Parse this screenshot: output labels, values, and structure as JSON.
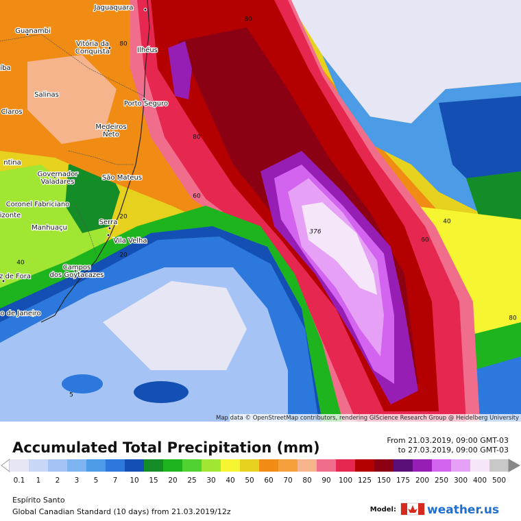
{
  "map": {
    "places": [
      {
        "lines": [
          "Jaguaquara"
        ]
      },
      {
        "lines": [
          "Guanambi"
        ]
      },
      {
        "lines": [
          "Vitória da",
          "Conquista"
        ]
      },
      {
        "lines": [
          "Ilhéus"
        ]
      },
      {
        "lines": [
          "Salinas"
        ]
      },
      {
        "lines": [
          "Porto Seguro"
        ]
      },
      {
        "lines": [
          "Claros"
        ]
      },
      {
        "lines": [
          "Medeiros",
          "Neto"
        ]
      },
      {
        "lines": [
          "ntina"
        ]
      },
      {
        "lines": [
          "Governador",
          "Valadares"
        ]
      },
      {
        "lines": [
          "São Mateus"
        ]
      },
      {
        "lines": [
          "Coronel Fabriciano"
        ]
      },
      {
        "lines": [
          "izonte"
        ]
      },
      {
        "lines": [
          "Manhuaçu"
        ]
      },
      {
        "lines": [
          "Serra"
        ]
      },
      {
        "lines": [
          "Vila Velha"
        ]
      },
      {
        "lines": [
          "Campos",
          "dos Goytacazes"
        ]
      },
      {
        "lines": [
          "z de Fora"
        ]
      },
      {
        "lines": [
          "o de Janeiro"
        ]
      },
      {
        "lines": [
          "íba"
        ]
      }
    ],
    "contour_labels": [
      80,
      80,
      80,
      60,
      20,
      20,
      40,
      376,
      40,
      60,
      80,
      5
    ],
    "attribution": "Map data © OpenStreetMap contributors, rendering GIScience Research Group @ Heidelberg University"
  },
  "legend": {
    "title": "Accumulated Total Precipitation (mm)",
    "period": [
      "From 21.03.2019, 09:00 GMT-03",
      "to 27.03.2019, 09:00 GMT-03"
    ],
    "entries": [
      {
        "label": 0.1,
        "color": "#e6e6f5"
      },
      {
        "label": 1,
        "color": "#c8d7f5"
      },
      {
        "label": 2,
        "color": "#a5c3f5"
      },
      {
        "label": 3,
        "color": "#7db4f0"
      },
      {
        "label": 5,
        "color": "#4b9be6"
      },
      {
        "label": 7,
        "color": "#2d78dc"
      },
      {
        "label": 10,
        "color": "#1450b4"
      },
      {
        "label": 15,
        "color": "#148c28"
      },
      {
        "label": 20,
        "color": "#1eb41e"
      },
      {
        "label": 25,
        "color": "#50d232"
      },
      {
        "label": 30,
        "color": "#a0e632"
      },
      {
        "label": 40,
        "color": "#f5f532"
      },
      {
        "label": 50,
        "color": "#e6d21e"
      },
      {
        "label": 60,
        "color": "#f08c14"
      },
      {
        "label": 70,
        "color": "#f5a03c"
      },
      {
        "label": 80,
        "color": "#f5b48c"
      },
      {
        "label": 90,
        "color": "#f06e8c"
      },
      {
        "label": 100,
        "color": "#e62850"
      },
      {
        "label": 125,
        "color": "#b40000"
      },
      {
        "label": 150,
        "color": "#8c0014"
      },
      {
        "label": 175,
        "color": "#5a0f78"
      },
      {
        "label": 200,
        "color": "#961eb4"
      },
      {
        "label": 250,
        "color": "#d264f0"
      },
      {
        "label": 300,
        "color": "#e6a0f5"
      },
      {
        "label": 400,
        "color": "#f5e6fa"
      },
      {
        "label": 500,
        "color": "#c8c8c8"
      }
    ]
  },
  "footer": {
    "region": "Espírito Santo",
    "model_run": "Global Canadian Standard (10 days) from 21.03.2019/12z",
    "model_label": "Model:",
    "brand": "weather.us"
  }
}
